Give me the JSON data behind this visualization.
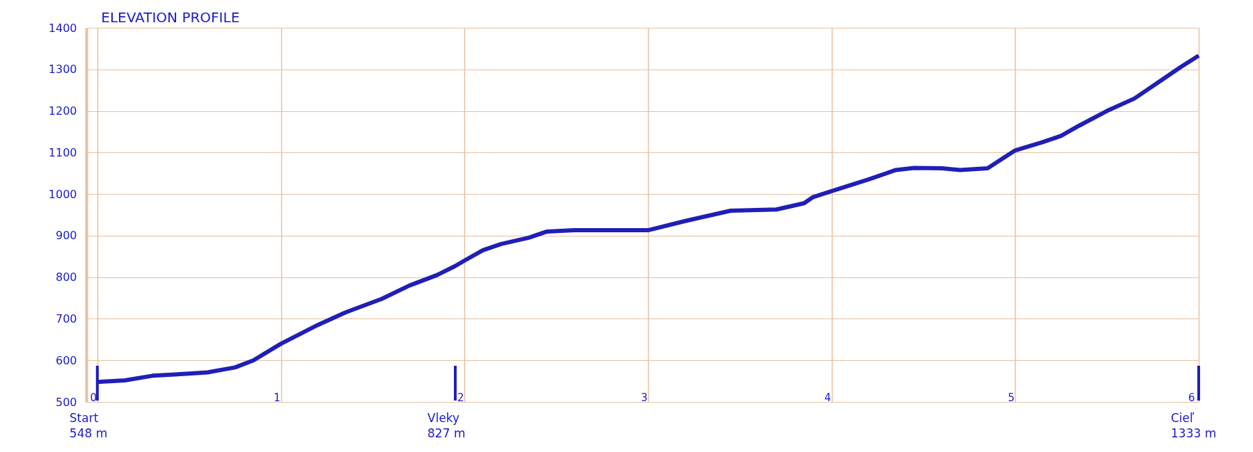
{
  "chart_data": {
    "type": "line",
    "title": "ELEVATION PROFILE",
    "x": [
      0,
      0.15,
      0.3,
      0.5,
      0.6,
      0.75,
      0.85,
      1.0,
      1.2,
      1.35,
      1.55,
      1.7,
      1.85,
      1.95,
      2.0,
      2.1,
      2.2,
      2.35,
      2.45,
      2.6,
      2.8,
      3.0,
      3.2,
      3.35,
      3.45,
      3.7,
      3.85,
      3.9,
      4.0,
      4.2,
      4.35,
      4.45,
      4.6,
      4.7,
      4.85,
      5.0,
      5.15,
      5.25,
      5.35,
      5.5,
      5.65,
      5.8,
      5.9,
      6.0
    ],
    "series": [
      {
        "color": "#1f1fb8",
        "values": [
          548,
          552,
          563,
          568,
          571,
          583,
          600,
          640,
          685,
          715,
          748,
          780,
          805,
          827,
          840,
          865,
          880,
          895,
          910,
          913,
          913,
          913,
          935,
          950,
          960,
          963,
          978,
          993,
          1007,
          1035,
          1058,
          1063,
          1062,
          1058,
          1062,
          1105,
          1125,
          1140,
          1165,
          1200,
          1230,
          1275,
          1305,
          1333
        ]
      }
    ],
    "xlim": [
      -0.06,
      6
    ],
    "xticks": [
      0,
      1,
      2,
      3,
      4,
      5,
      6
    ],
    "ylim": [
      500,
      1400
    ],
    "yticks": [
      500,
      600,
      700,
      800,
      900,
      1000,
      1100,
      1200,
      1300,
      1400
    ],
    "grid": true,
    "marker": "none",
    "line_style": "solid",
    "ref_lines": [
      {
        "axis": "x",
        "value": 0,
        "label": "Start\n548 m",
        "color": "#1f1fb8"
      },
      {
        "axis": "x",
        "value": 1.95,
        "label": "Vleky\n827 m",
        "color": "#1f1fb8"
      },
      {
        "axis": "x",
        "value": 6,
        "label": "Cieľ\n1333 m",
        "color": "#1f1fb8"
      }
    ]
  }
}
